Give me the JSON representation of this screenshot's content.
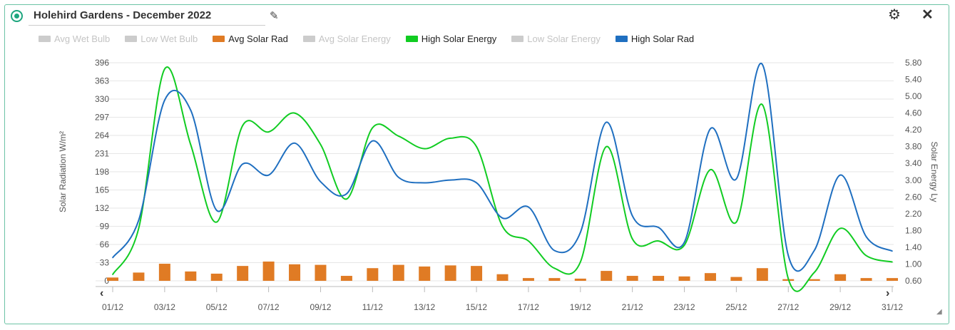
{
  "header": {
    "title": "Holehird Gardens - December 2022",
    "edit_icon": "pencil-icon",
    "settings_icon": "gear-icon",
    "close_icon": "close-icon"
  },
  "legend": [
    {
      "label": "Avg Wet Bulb",
      "color": "#cccccc",
      "active": false
    },
    {
      "label": "Low Wet Bulb",
      "color": "#cccccc",
      "active": false
    },
    {
      "label": "Avg Solar Rad",
      "color": "#e07b24",
      "active": true
    },
    {
      "label": "Avg Solar Energy",
      "color": "#cccccc",
      "active": false
    },
    {
      "label": "High Solar Energy",
      "color": "#11cc22",
      "active": true
    },
    {
      "label": "Low Solar Energy",
      "color": "#cccccc",
      "active": false
    },
    {
      "label": "High Solar Rad",
      "color": "#1f6fc0",
      "active": true
    }
  ],
  "chart_data": {
    "type": "line",
    "x": [
      "01/12",
      "02/12",
      "03/12",
      "04/12",
      "05/12",
      "06/12",
      "07/12",
      "08/12",
      "09/12",
      "10/12",
      "11/12",
      "12/12",
      "13/12",
      "14/12",
      "15/12",
      "16/12",
      "17/12",
      "18/12",
      "19/12",
      "20/12",
      "21/12",
      "22/12",
      "23/12",
      "24/12",
      "25/12",
      "26/12",
      "27/12",
      "28/12",
      "29/12",
      "30/12",
      "31/12"
    ],
    "x_tick_labels": [
      "01/12",
      "03/12",
      "05/12",
      "07/12",
      "09/12",
      "11/12",
      "13/12",
      "15/12",
      "17/12",
      "19/12",
      "21/12",
      "23/12",
      "25/12",
      "27/12",
      "29/12",
      "31/12"
    ],
    "ylabel_left": "Solar Radiation W/m²",
    "ylabel_right": "Solar Energy Ly",
    "yticks_left": [
      "0",
      "33",
      "66",
      "99",
      "132",
      "165",
      "198",
      "231",
      "264",
      "297",
      "330",
      "363",
      "396"
    ],
    "yticks_right": [
      "0.60",
      "1.00",
      "1.40",
      "1.80",
      "2.20",
      "2.60",
      "3.00",
      "3.40",
      "3.80",
      "4.20",
      "4.60",
      "5.00",
      "5.40",
      "5.80"
    ],
    "ylim_left": [
      0,
      396
    ],
    "ylim_right": [
      0.6,
      5.8
    ],
    "series": [
      {
        "name": "Avg Solar Rad",
        "axis": "left",
        "kind": "bar",
        "color": "#e07b24",
        "values": [
          6,
          15,
          31,
          17,
          13,
          27,
          35,
          30,
          29,
          9,
          23,
          29,
          26,
          28,
          27,
          12,
          5,
          5,
          4,
          18,
          9,
          9,
          8,
          14,
          7,
          23,
          3,
          3,
          12,
          5,
          5
        ]
      },
      {
        "name": "High Solar Energy",
        "axis": "right",
        "kind": "line",
        "color": "#11cc22",
        "values": [
          0.75,
          1.85,
          5.65,
          3.85,
          2.0,
          4.3,
          4.15,
          4.6,
          3.85,
          2.55,
          4.25,
          4.05,
          3.75,
          4.0,
          3.8,
          1.9,
          1.55,
          0.9,
          1.05,
          3.8,
          1.6,
          1.55,
          1.45,
          3.25,
          2.0,
          4.8,
          0.65,
          0.8,
          1.85,
          1.2,
          1.05
        ]
      },
      {
        "name": "High Solar Rad",
        "axis": "left",
        "kind": "line",
        "color": "#1f6fc0",
        "values": [
          42,
          110,
          328,
          310,
          128,
          212,
          192,
          250,
          180,
          158,
          254,
          188,
          178,
          183,
          178,
          114,
          134,
          55,
          88,
          288,
          118,
          97,
          70,
          276,
          185,
          393,
          46,
          55,
          192,
          80,
          54
        ]
      }
    ]
  }
}
